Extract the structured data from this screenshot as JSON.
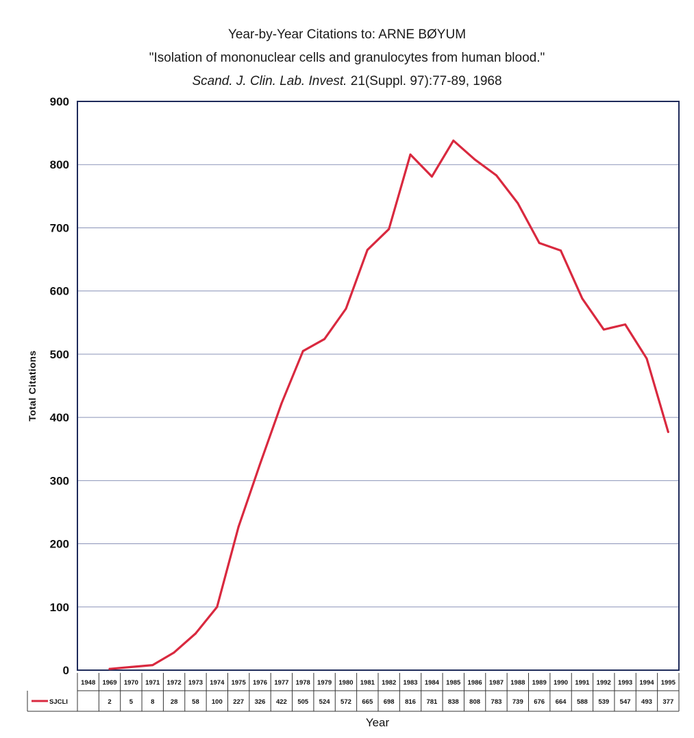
{
  "chart_data": {
    "type": "line",
    "title_line1": "Year-by-Year Citations to:  ARNE BØYUM",
    "title_line2": "\"Isolation of mononuclear cells and granulocytes from human blood.\"",
    "title_line3_italic": "Scand. J. Clin. Lab. Invest.",
    "title_line3_rest": " 21(Suppl. 97):77-89, 1968",
    "ylabel": "Total Citations",
    "xlabel": "Year",
    "ylim": [
      0,
      900
    ],
    "yticks": [
      "0",
      "100",
      "200",
      "300",
      "400",
      "500",
      "600",
      "700",
      "800",
      "900"
    ],
    "grid": true,
    "categories": [
      "1948",
      "1969",
      "1970",
      "1971",
      "1972",
      "1973",
      "1974",
      "1975",
      "1976",
      "1977",
      "1978",
      "1979",
      "1980",
      "1981",
      "1982",
      "1983",
      "1984",
      "1985",
      "1986",
      "1987",
      "1988",
      "1989",
      "1990",
      "1991",
      "1992",
      "1993",
      "1994",
      "1995"
    ],
    "series": [
      {
        "name": "SJCLI",
        "color": "#d9293f",
        "values": [
          null,
          2,
          5,
          8,
          28,
          58,
          100,
          227,
          326,
          422,
          505,
          524,
          572,
          665,
          698,
          816,
          781,
          838,
          808,
          783,
          739,
          676,
          664,
          588,
          539,
          547,
          493,
          377
        ],
        "value_labels": [
          "",
          "2",
          "5",
          "8",
          "28",
          "58",
          "100",
          "227",
          "326",
          "422",
          "505",
          "524",
          "572",
          "665",
          "698",
          "816",
          "781",
          "838",
          "808",
          "783",
          "739",
          "676",
          "664",
          "588",
          "539",
          "547",
          "493",
          "377"
        ]
      }
    ]
  }
}
